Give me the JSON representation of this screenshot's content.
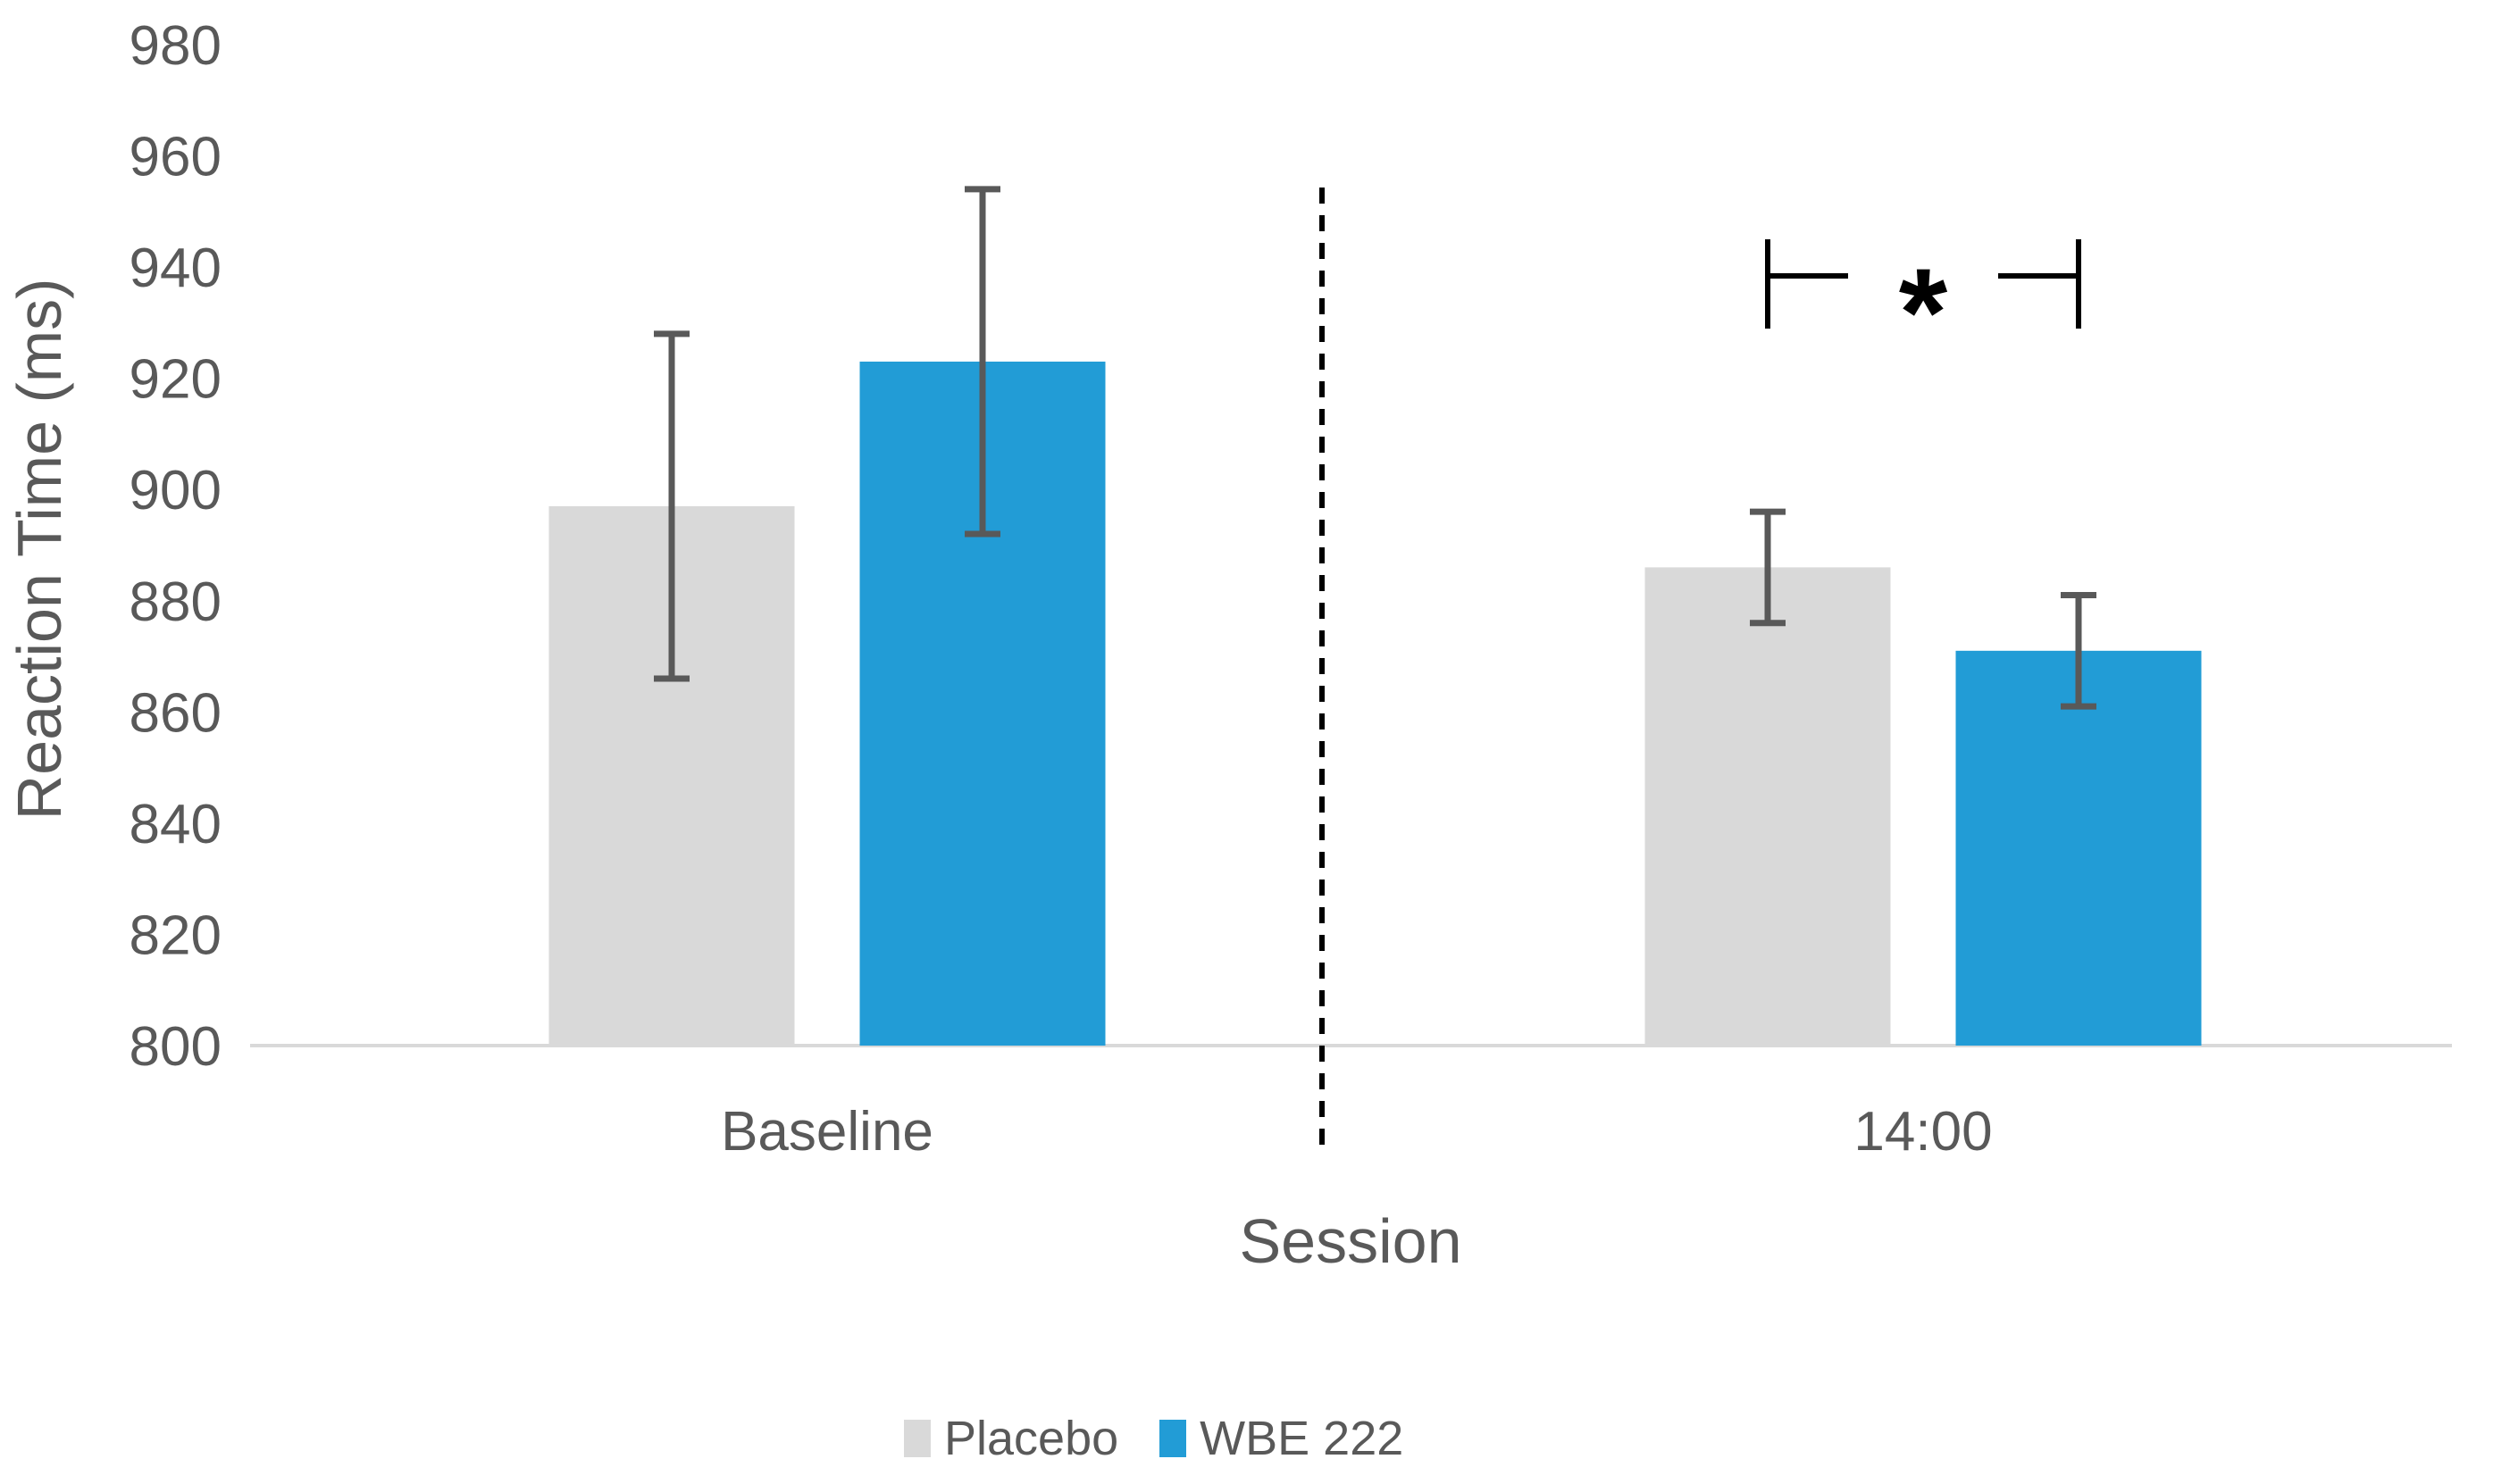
{
  "chart_data": {
    "type": "bar",
    "title": "",
    "xlabel": "Session",
    "ylabel": "Reaction Time (ms)",
    "ylim": [
      800,
      980
    ],
    "yticks": [
      800,
      820,
      840,
      860,
      880,
      900,
      920,
      940,
      960,
      980
    ],
    "categories": [
      "Baseline",
      "14:00"
    ],
    "series": [
      {
        "name": "Placebo",
        "color": "#D9D9D9",
        "values": [
          897,
          886
        ],
        "error_low": [
          866,
          876
        ],
        "error_high": [
          928,
          896
        ]
      },
      {
        "name": "WBE 222",
        "color": "#229CD6",
        "values": [
          923,
          871
        ],
        "error_low": [
          892,
          861
        ],
        "error_high": [
          954,
          881
        ]
      }
    ],
    "grid": false,
    "legend_position": "bottom",
    "annotations": [
      {
        "type": "dashed_divider",
        "between": [
          "Baseline",
          "14:00"
        ]
      },
      {
        "type": "significance_bracket",
        "label": "*",
        "category": "14:00",
        "connects": [
          "Placebo",
          "WBE 222"
        ]
      }
    ],
    "colors": {
      "axis_line": "#D9D9D9",
      "text": "#595959",
      "error_bar": "#595959",
      "annotation": "#000000"
    }
  }
}
